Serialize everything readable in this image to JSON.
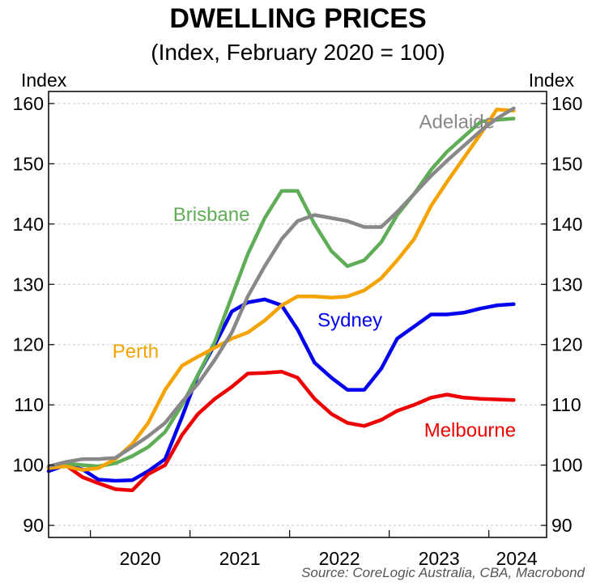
{
  "chart_data": {
    "type": "line",
    "title": "DWELLING PRICES",
    "subtitle": "(Index, February 2020 = 100)",
    "ylabel_left": "Index",
    "ylabel_right": "Index",
    "ylim": [
      88,
      162
    ],
    "yticks": [
      90,
      100,
      110,
      120,
      130,
      140,
      150,
      160
    ],
    "xlim": [
      2019.58,
      2024.58
    ],
    "year_boundaries": [
      2020,
      2021,
      2022,
      2023,
      2024
    ],
    "xtick_labels": [
      {
        "label": "2020",
        "x": 2020.5
      },
      {
        "label": "2021",
        "x": 2021.5
      },
      {
        "label": "2022",
        "x": 2022.5
      },
      {
        "label": "2023",
        "x": 2023.5
      },
      {
        "label": "2024",
        "x": 2024.28
      }
    ],
    "grid": true,
    "source": "Source: CoreLogic Australia, CBA, Macrobond",
    "series": [
      {
        "name": "Sydney",
        "color": "#0000ee",
        "label_at": [
          2022.28,
          123.0
        ],
        "points": [
          [
            2019.58,
            99.0
          ],
          [
            2019.75,
            100.0
          ],
          [
            2019.92,
            99.3
          ],
          [
            2020.08,
            97.6
          ],
          [
            2020.25,
            97.4
          ],
          [
            2020.42,
            97.5
          ],
          [
            2020.58,
            99.0
          ],
          [
            2020.75,
            101.0
          ],
          [
            2020.92,
            108.0
          ],
          [
            2021.08,
            115.0
          ],
          [
            2021.25,
            120.0
          ],
          [
            2021.42,
            125.5
          ],
          [
            2021.58,
            127.0
          ],
          [
            2021.75,
            127.5
          ],
          [
            2021.92,
            126.5
          ],
          [
            2022.08,
            122.5
          ],
          [
            2022.25,
            117.0
          ],
          [
            2022.42,
            114.5
          ],
          [
            2022.58,
            112.5
          ],
          [
            2022.75,
            112.5
          ],
          [
            2022.92,
            116.0
          ],
          [
            2023.08,
            121.0
          ],
          [
            2023.25,
            123.0
          ],
          [
            2023.42,
            125.0
          ],
          [
            2023.58,
            125.0
          ],
          [
            2023.75,
            125.3
          ],
          [
            2023.92,
            126.0
          ],
          [
            2024.08,
            126.5
          ],
          [
            2024.25,
            126.7
          ]
        ]
      },
      {
        "name": "Melbourne",
        "color": "#ee0000",
        "label_at": [
          2023.35,
          104.7
        ],
        "points": [
          [
            2019.58,
            99.5
          ],
          [
            2019.75,
            100.0
          ],
          [
            2019.92,
            98.0
          ],
          [
            2020.08,
            97.0
          ],
          [
            2020.25,
            96.0
          ],
          [
            2020.42,
            95.8
          ],
          [
            2020.58,
            98.5
          ],
          [
            2020.75,
            100.0
          ],
          [
            2020.92,
            105.0
          ],
          [
            2021.08,
            108.5
          ],
          [
            2021.25,
            111.0
          ],
          [
            2021.42,
            113.0
          ],
          [
            2021.58,
            115.2
          ],
          [
            2021.75,
            115.3
          ],
          [
            2021.92,
            115.5
          ],
          [
            2022.08,
            114.5
          ],
          [
            2022.25,
            111.0
          ],
          [
            2022.42,
            108.5
          ],
          [
            2022.58,
            107.0
          ],
          [
            2022.75,
            106.5
          ],
          [
            2022.92,
            107.5
          ],
          [
            2023.08,
            109.0
          ],
          [
            2023.25,
            110.0
          ],
          [
            2023.42,
            111.2
          ],
          [
            2023.58,
            111.7
          ],
          [
            2023.75,
            111.2
          ],
          [
            2023.92,
            111.0
          ],
          [
            2024.08,
            110.9
          ],
          [
            2024.25,
            110.8
          ]
        ]
      },
      {
        "name": "Brisbane",
        "color": "#5fad56",
        "label_at": [
          2020.83,
          140.5
        ],
        "points": [
          [
            2019.58,
            99.5
          ],
          [
            2019.75,
            100.3
          ],
          [
            2019.92,
            100.0
          ],
          [
            2020.08,
            99.8
          ],
          [
            2020.25,
            100.3
          ],
          [
            2020.42,
            101.5
          ],
          [
            2020.58,
            103.0
          ],
          [
            2020.75,
            105.5
          ],
          [
            2020.92,
            110.0
          ],
          [
            2021.08,
            115.0
          ],
          [
            2021.25,
            120.5
          ],
          [
            2021.42,
            128.0
          ],
          [
            2021.58,
            135.0
          ],
          [
            2021.75,
            141.0
          ],
          [
            2021.92,
            145.5
          ],
          [
            2022.08,
            145.5
          ],
          [
            2022.25,
            140.0
          ],
          [
            2022.42,
            135.5
          ],
          [
            2022.58,
            133.0
          ],
          [
            2022.75,
            134.0
          ],
          [
            2022.92,
            137.0
          ],
          [
            2023.08,
            141.5
          ],
          [
            2023.25,
            145.0
          ],
          [
            2023.42,
            149.0
          ],
          [
            2023.58,
            152.0
          ],
          [
            2023.75,
            154.5
          ],
          [
            2023.92,
            157.0
          ],
          [
            2024.08,
            157.3
          ],
          [
            2024.25,
            157.5
          ]
        ]
      },
      {
        "name": "Perth",
        "color": "#f5a300",
        "label_at": [
          2020.22,
          117.8
        ],
        "points": [
          [
            2019.58,
            99.5
          ],
          [
            2019.75,
            99.8
          ],
          [
            2019.92,
            99.2
          ],
          [
            2020.08,
            99.5
          ],
          [
            2020.25,
            101.0
          ],
          [
            2020.42,
            103.5
          ],
          [
            2020.58,
            107.0
          ],
          [
            2020.75,
            112.5
          ],
          [
            2020.92,
            116.5
          ],
          [
            2021.08,
            118.0
          ],
          [
            2021.25,
            119.5
          ],
          [
            2021.42,
            121.0
          ],
          [
            2021.58,
            122.0
          ],
          [
            2021.75,
            124.0
          ],
          [
            2021.92,
            126.5
          ],
          [
            2022.08,
            128.0
          ],
          [
            2022.25,
            128.0
          ],
          [
            2022.42,
            127.8
          ],
          [
            2022.58,
            128.0
          ],
          [
            2022.75,
            129.0
          ],
          [
            2022.92,
            131.0
          ],
          [
            2023.08,
            134.0
          ],
          [
            2023.25,
            137.5
          ],
          [
            2023.42,
            143.0
          ],
          [
            2023.58,
            147.0
          ],
          [
            2023.75,
            151.0
          ],
          [
            2023.92,
            155.0
          ],
          [
            2024.08,
            159.0
          ],
          [
            2024.25,
            158.8
          ]
        ]
      },
      {
        "name": "Adelaide",
        "color": "#888888",
        "label_at": [
          2023.3,
          155.9
        ],
        "points": [
          [
            2019.58,
            99.8
          ],
          [
            2019.75,
            100.5
          ],
          [
            2019.92,
            101.0
          ],
          [
            2020.08,
            101.0
          ],
          [
            2020.25,
            101.2
          ],
          [
            2020.42,
            103.0
          ],
          [
            2020.58,
            104.8
          ],
          [
            2020.75,
            107.0
          ],
          [
            2020.92,
            110.5
          ],
          [
            2021.08,
            113.5
          ],
          [
            2021.25,
            117.5
          ],
          [
            2021.42,
            122.0
          ],
          [
            2021.58,
            128.0
          ],
          [
            2021.75,
            133.0
          ],
          [
            2021.92,
            137.5
          ],
          [
            2022.08,
            140.5
          ],
          [
            2022.25,
            141.5
          ],
          [
            2022.42,
            141.0
          ],
          [
            2022.58,
            140.5
          ],
          [
            2022.75,
            139.5
          ],
          [
            2022.92,
            139.5
          ],
          [
            2023.08,
            142.0
          ],
          [
            2023.25,
            145.0
          ],
          [
            2023.42,
            148.0
          ],
          [
            2023.58,
            150.5
          ],
          [
            2023.75,
            153.0
          ],
          [
            2023.92,
            155.5
          ],
          [
            2024.08,
            157.5
          ],
          [
            2024.25,
            159.2
          ]
        ]
      }
    ]
  }
}
